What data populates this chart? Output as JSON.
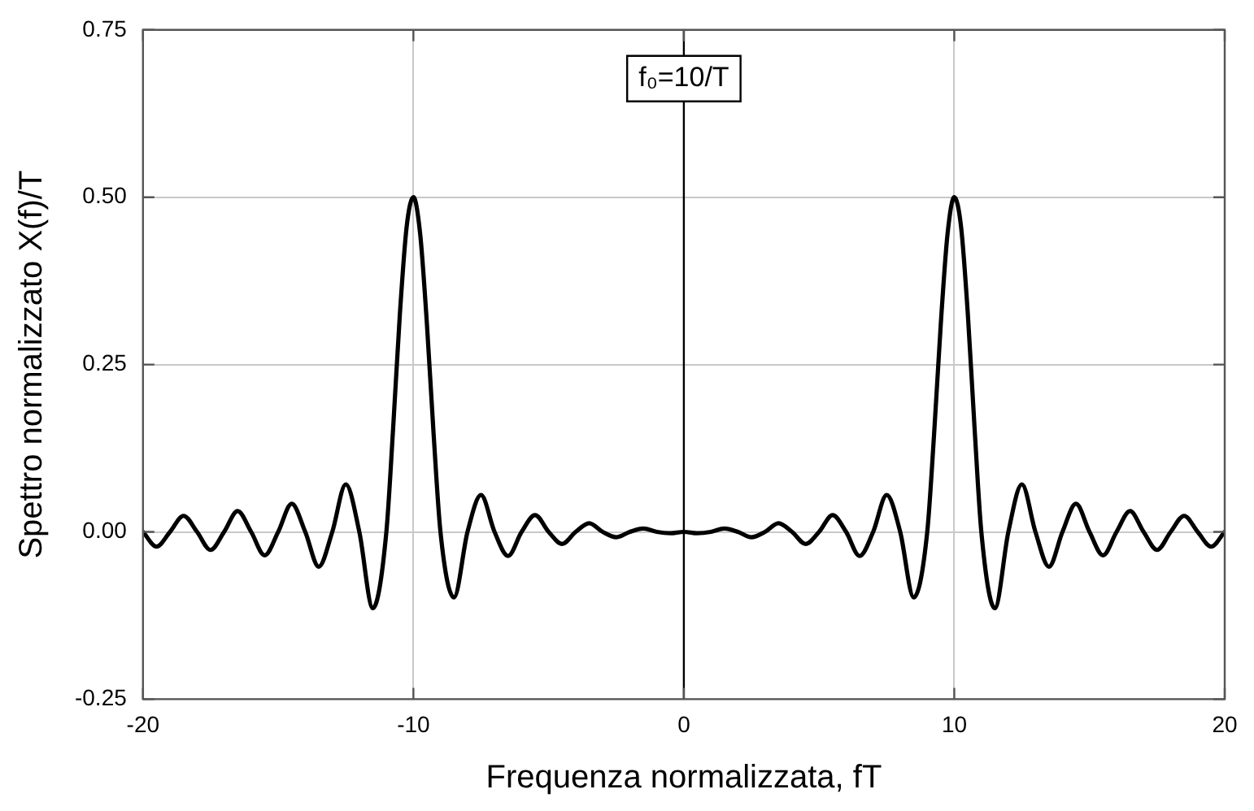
{
  "chart_data": {
    "type": "line",
    "xlabel": "Frequenza normalizzata, fT",
    "ylabel": "Spettro normalizzato X(f)/T",
    "annotations": [
      "f₀=10/T"
    ],
    "x": [
      -20,
      -19.5,
      -19,
      -18.5,
      -18,
      -17.5,
      -17,
      -16.5,
      -16,
      -15.5,
      -15,
      -14.5,
      -14,
      -13.5,
      -13,
      -12.5,
      -12,
      -11.5,
      -11,
      -10.75,
      -10.5,
      -10.25,
      -10,
      -9.75,
      -9.5,
      -9.25,
      -9,
      -8.5,
      -8,
      -7.5,
      -7,
      -6.5,
      -6,
      -5.5,
      -5,
      -4.5,
      -4,
      -3.5,
      -3,
      -2.5,
      -2,
      -1.5,
      -1,
      -0.5,
      0,
      0.5,
      1,
      1.5,
      2,
      2.5,
      3,
      3.5,
      4,
      4.5,
      5,
      5.5,
      6,
      6.5,
      7,
      7.5,
      8,
      8.5,
      9,
      9.25,
      9.5,
      9.75,
      10,
      10.25,
      10.5,
      10.75,
      11,
      11.5,
      12,
      12.5,
      13,
      13.5,
      14,
      14.5,
      15,
      15.5,
      16,
      16.5,
      17,
      17.5,
      18,
      18.5,
      19,
      19.5,
      20
    ],
    "series": [
      {
        "color": "#000000",
        "values": [
          0,
          -0.022,
          0,
          0.024,
          0,
          -0.027,
          0,
          0.031,
          0,
          -0.035,
          0,
          0.042,
          0,
          -0.052,
          0,
          0.071,
          0,
          -0.114,
          0,
          0.155,
          0.326,
          0.456,
          0.5,
          0.445,
          0.31,
          0.144,
          0,
          -0.098,
          0,
          0.055,
          0,
          -0.036,
          0,
          0.025,
          0,
          -0.018,
          0,
          0.013,
          0,
          -0.008,
          0,
          0.005,
          0,
          -0.002,
          0,
          -0.002,
          0,
          0.005,
          0,
          -0.008,
          0,
          0.013,
          0,
          -0.018,
          0,
          0.025,
          0,
          -0.036,
          0,
          0.055,
          0,
          -0.098,
          0,
          0.144,
          0.31,
          0.445,
          0.5,
          0.456,
          0.326,
          0.155,
          0,
          -0.114,
          0,
          0.071,
          0,
          -0.052,
          0,
          0.042,
          0,
          -0.035,
          0,
          0.031,
          0,
          -0.027,
          0,
          0.024,
          0,
          -0.022,
          0
        ]
      }
    ],
    "xlim": [
      -20,
      20
    ],
    "xticks": [
      -20,
      -10,
      0,
      10,
      20
    ],
    "ylim": [
      -0.25,
      0.75
    ],
    "yticks": [
      {
        "value": -0.25,
        "label": "-0.25"
      },
      {
        "value": 0,
        "label": "0.00"
      },
      {
        "value": 0.25,
        "label": "0.25"
      },
      {
        "value": 0.5,
        "label": "0.50"
      },
      {
        "value": 0.75,
        "label": "0.75"
      }
    ],
    "grid": true,
    "legend": false,
    "marker": "none",
    "line_style": "solid",
    "ref_lines": [
      {
        "axis": "x",
        "value": 0,
        "color": "#000000"
      }
    ]
  }
}
